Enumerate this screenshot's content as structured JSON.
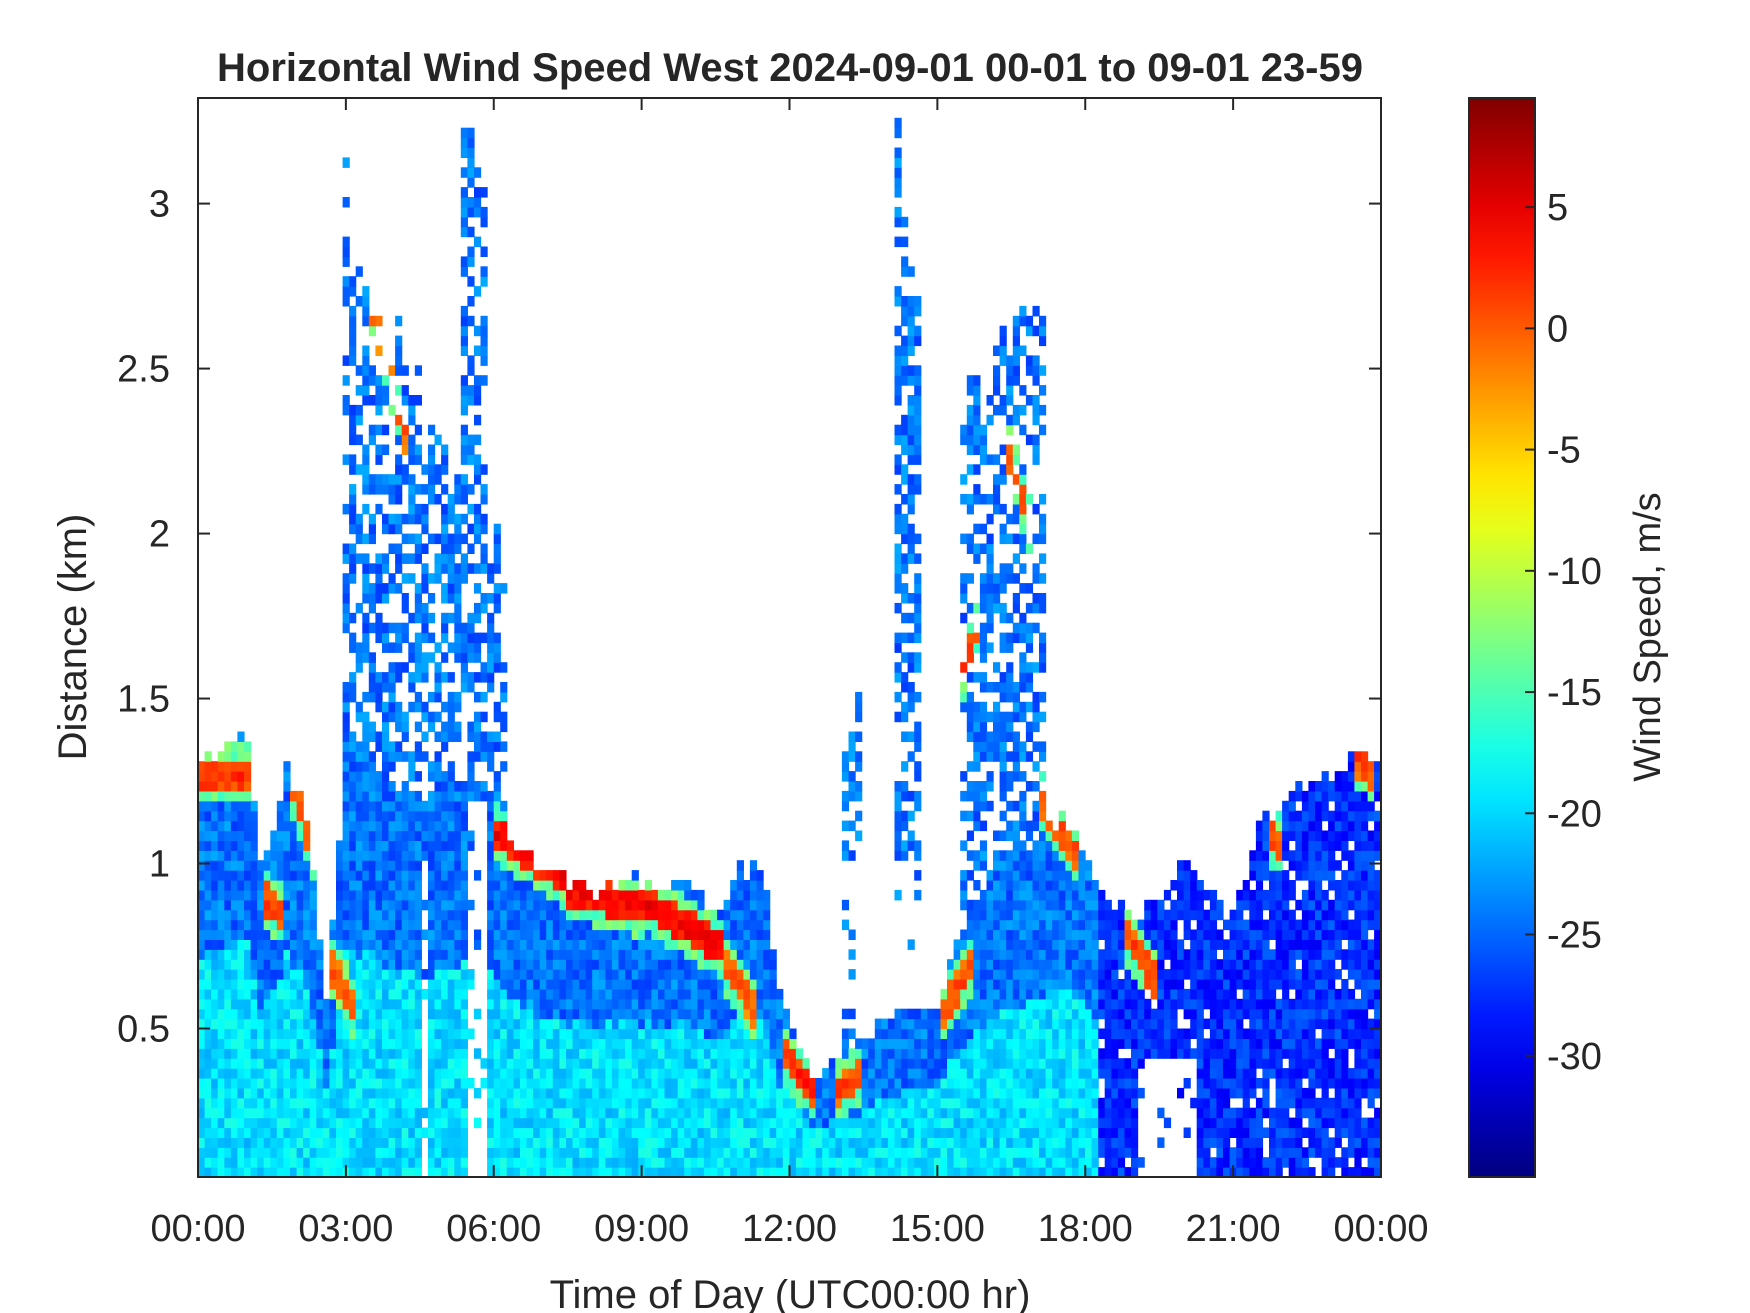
{
  "chart_data": {
    "type": "heatmap",
    "title": "Horizontal Wind Speed West 2024-09-01 00-01 to 09-01 23-59",
    "xlabel": "Time of Day (UTC00:00 hr)",
    "ylabel": "Distance (km)",
    "colorbar_label": "Wind Speed, m/s",
    "colormap": "jet",
    "xlim": [
      0,
      24
    ],
    "ylim": [
      0.05,
      3.32
    ],
    "clim": [
      -35,
      9.5
    ],
    "x_ticks": [
      {
        "value": 0,
        "label": "00:00"
      },
      {
        "value": 3,
        "label": "03:00"
      },
      {
        "value": 6,
        "label": "06:00"
      },
      {
        "value": 9,
        "label": "09:00"
      },
      {
        "value": 12,
        "label": "12:00"
      },
      {
        "value": 15,
        "label": "15:00"
      },
      {
        "value": 18,
        "label": "18:00"
      },
      {
        "value": 21,
        "label": "21:00"
      },
      {
        "value": 24,
        "label": "00:00"
      }
    ],
    "y_ticks": [
      {
        "value": 0.5,
        "label": "0.5"
      },
      {
        "value": 1,
        "label": "1"
      },
      {
        "value": 1.5,
        "label": "1.5"
      },
      {
        "value": 2,
        "label": "2"
      },
      {
        "value": 2.5,
        "label": "2.5"
      },
      {
        "value": 3,
        "label": "3"
      }
    ],
    "colorbar_ticks": [
      {
        "value": 5,
        "label": "5"
      },
      {
        "value": 0,
        "label": "0"
      },
      {
        "value": -5,
        "label": "-5"
      },
      {
        "value": -10,
        "label": "-10"
      },
      {
        "value": -15,
        "label": "-15"
      },
      {
        "value": -20,
        "label": "-20"
      },
      {
        "value": -25,
        "label": "-25"
      },
      {
        "value": -30,
        "label": "-30"
      }
    ],
    "grid": {
      "time_step_hr": 0.1333,
      "range_step_km": 0.03,
      "range_start_km": 0.05
    },
    "boundary_layer_top_km": [
      [
        0.0,
        1.3
      ],
      [
        0.5,
        1.34
      ],
      [
        1.0,
        1.4
      ],
      [
        1.3,
        0.95
      ],
      [
        1.8,
        1.3
      ],
      [
        2.2,
        1.15
      ],
      [
        2.6,
        0.6
      ],
      [
        3.0,
        1.33
      ],
      [
        3.5,
        1.3
      ],
      [
        4.5,
        1.2
      ],
      [
        5.5,
        1.25
      ],
      [
        6.0,
        1.2
      ],
      [
        6.5,
        1.05
      ],
      [
        7.0,
        0.98
      ],
      [
        8.0,
        0.92
      ],
      [
        9.0,
        0.96
      ],
      [
        10.0,
        0.93
      ],
      [
        10.5,
        0.85
      ],
      [
        11.0,
        0.98
      ],
      [
        11.5,
        0.98
      ],
      [
        11.8,
        0.6
      ],
      [
        12.2,
        0.45
      ],
      [
        12.5,
        0.36
      ],
      [
        13.0,
        0.4
      ],
      [
        13.5,
        0.46
      ],
      [
        14.0,
        0.52
      ],
      [
        14.5,
        0.6
      ],
      [
        15.0,
        0.62
      ],
      [
        15.3,
        0.72
      ],
      [
        15.6,
        0.85
      ],
      [
        16.0,
        0.95
      ],
      [
        16.5,
        1.0
      ],
      [
        17.0,
        1.05
      ],
      [
        17.5,
        1.15
      ],
      [
        18.0,
        1.05
      ],
      [
        18.5,
        0.85
      ],
      [
        19.0,
        0.85
      ],
      [
        19.5,
        0.9
      ],
      [
        20.0,
        1.0
      ],
      [
        20.6,
        0.9
      ],
      [
        21.0,
        0.85
      ],
      [
        21.5,
        1.1
      ],
      [
        22.0,
        1.2
      ],
      [
        22.5,
        1.25
      ],
      [
        23.0,
        1.28
      ],
      [
        23.5,
        1.32
      ],
      [
        24.0,
        1.3
      ]
    ],
    "jet_bands": [
      {
        "t0": 0.0,
        "t1": 1.0,
        "height_km": [
          1.27,
          1.27
        ],
        "speed_ms": 4
      },
      {
        "t0": 1.3,
        "t1": 1.7,
        "height_km": [
          0.9,
          0.85
        ],
        "speed_ms": 3
      },
      {
        "t0": 1.9,
        "t1": 2.4,
        "height_km": [
          1.25,
          1.0
        ],
        "speed_ms": 3
      },
      {
        "t0": 2.5,
        "t1": 3.2,
        "height_km": [
          0.75,
          0.55
        ],
        "speed_ms": 2
      },
      {
        "t0": 3.4,
        "t1": 4.2,
        "height_km": [
          2.75,
          2.3
        ],
        "speed_ms": 2
      },
      {
        "t0": 6.0,
        "t1": 7.5,
        "height_km": [
          1.1,
          0.95
        ],
        "speed_ms": 6
      },
      {
        "t0": 7.5,
        "t1": 9.0,
        "height_km": [
          0.92,
          0.87
        ],
        "speed_ms": 6
      },
      {
        "t0": 9.0,
        "t1": 10.7,
        "height_km": [
          0.89,
          0.74
        ],
        "speed_ms": 6
      },
      {
        "t0": 10.7,
        "t1": 11.3,
        "height_km": [
          0.7,
          0.55
        ],
        "speed_ms": 2
      },
      {
        "t0": 11.8,
        "t1": 12.5,
        "height_km": [
          0.45,
          0.3
        ],
        "speed_ms": 4
      },
      {
        "t0": 12.9,
        "t1": 13.5,
        "height_km": [
          0.3,
          0.37
        ],
        "speed_ms": 3
      },
      {
        "t0": 15.0,
        "t1": 15.7,
        "height_km": [
          0.52,
          0.7
        ],
        "speed_ms": 3
      },
      {
        "t0": 15.5,
        "t1": 15.8,
        "height_km": [
          1.58,
          1.72
        ],
        "speed_ms": 4
      },
      {
        "t0": 16.4,
        "t1": 16.9,
        "height_km": [
          2.28,
          2.0
        ],
        "speed_ms": 3
      },
      {
        "t0": 17.1,
        "t1": 17.9,
        "height_km": [
          1.2,
          1.0
        ],
        "speed_ms": 3
      },
      {
        "t0": 18.8,
        "t1": 19.4,
        "height_km": [
          0.8,
          0.65
        ],
        "speed_ms": 3
      },
      {
        "t0": 21.7,
        "t1": 22.0,
        "height_km": [
          1.1,
          1.05
        ],
        "speed_ms": 3
      },
      {
        "t0": 23.4,
        "t1": 23.8,
        "height_km": [
          1.33,
          1.28
        ],
        "speed_ms": 3
      }
    ],
    "columns": [
      {
        "t0": 2.9,
        "t1": 3.1,
        "top_km": 3.15
      },
      {
        "t0": 3.1,
        "t1": 3.7,
        "top_km": 2.85
      },
      {
        "t0": 3.7,
        "t1": 4.5,
        "top_km": 2.7
      },
      {
        "t0": 4.5,
        "t1": 5.3,
        "top_km": 2.35
      },
      {
        "t0": 5.3,
        "t1": 5.9,
        "top_km": 3.25
      },
      {
        "t0": 5.9,
        "t1": 6.2,
        "top_km": 2.1
      },
      {
        "t0": 13.1,
        "t1": 13.4,
        "top_km": 1.55
      },
      {
        "t0": 14.1,
        "t1": 14.4,
        "top_km": 3.25
      },
      {
        "t0": 14.4,
        "t1": 14.7,
        "top_km": 2.95
      },
      {
        "t0": 15.5,
        "t1": 16.1,
        "top_km": 2.6
      },
      {
        "t0": 16.1,
        "t1": 17.2,
        "top_km": 2.7
      }
    ],
    "clear_gaps": [
      {
        "t0": 4.5,
        "t1": 4.7,
        "z0": 0.05,
        "z1": 1.0
      },
      {
        "t0": 5.5,
        "t1": 5.9,
        "z0": 0.05,
        "z1": 1.2
      },
      {
        "t0": 12.7,
        "t1": 15.0,
        "z0": 0.55,
        "z1": 1.0
      },
      {
        "t0": 19.1,
        "t1": 20.2,
        "z0": 0.05,
        "z1": 0.4
      }
    ],
    "value_ranges_ms": {
      "near_surface_0_to_12h": [
        -22,
        -17
      ],
      "upper_boundary_layer": [
        -27,
        -22
      ],
      "late_day_18_to_24h": [
        -30,
        -25
      ]
    }
  }
}
